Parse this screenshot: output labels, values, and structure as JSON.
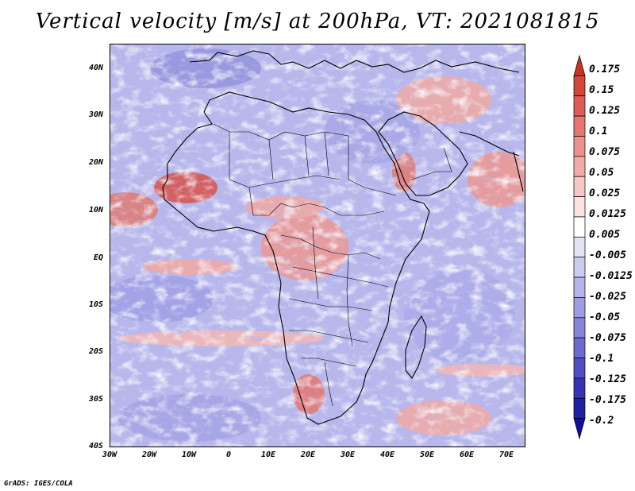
{
  "title": "Vertical velocity [m/s] at 200hPa, VT: 2021081815",
  "credit": "GrADS: IGES/COLA",
  "map": {
    "region": "Africa",
    "y_ticks": [
      "40N",
      "30N",
      "20N",
      "10N",
      "EQ",
      "10S",
      "20S",
      "30S",
      "40S"
    ],
    "x_ticks": [
      "30W",
      "20W",
      "10W",
      "0",
      "10E",
      "20E",
      "30E",
      "40E",
      "50E",
      "60E",
      "70E"
    ],
    "lat_range": [
      -40,
      45
    ],
    "lon_range": [
      -30,
      75
    ]
  },
  "colorbar": {
    "labels": [
      "0.175",
      "0.15",
      "0.125",
      "0.1",
      "0.075",
      "0.05",
      "0.025",
      "0.0125",
      "0.005",
      "-0.005",
      "-0.0125",
      "-0.025",
      "-0.05",
      "-0.075",
      "-0.1",
      "-0.125",
      "-0.175",
      "-0.2"
    ],
    "colors": [
      "#c8321f",
      "#d3463a",
      "#dc5d56",
      "#e57670",
      "#ec918c",
      "#f2aca8",
      "#f6c7c4",
      "#fae2e0",
      "#ffffff",
      "#e3e3f6",
      "#ccccf0",
      "#b5b5ea",
      "#9e9ee2",
      "#8585d9",
      "#6b6bce",
      "#4f4fc2",
      "#3535b4",
      "#2020a2",
      "#1010a0"
    ]
  },
  "colors": {
    "positive": "#e8857d",
    "negative": "#9a9ae4",
    "background": "#c9c9ef"
  }
}
